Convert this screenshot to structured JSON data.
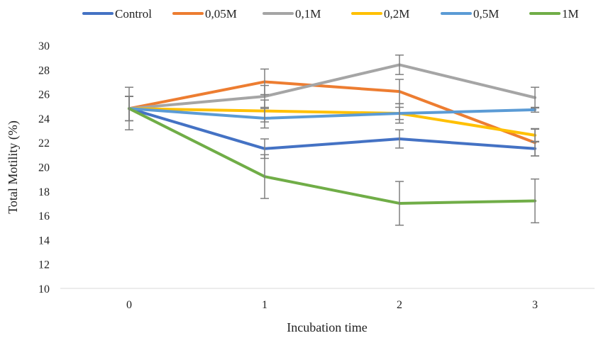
{
  "chart_data": {
    "type": "line",
    "title": "",
    "xlabel": "Incubation time",
    "ylabel": "Total Motility (%)",
    "x": [
      0,
      1,
      2,
      3
    ],
    "x_tick_labels": [
      "0",
      "1",
      "2",
      "3"
    ],
    "ylim": [
      10,
      30
    ],
    "y_ticks": [
      10,
      12,
      14,
      16,
      18,
      20,
      22,
      24,
      26,
      28,
      30
    ],
    "grid": false,
    "legend_position": "top",
    "error_bar_color": "#7f7f7f",
    "series": [
      {
        "name": "Control",
        "color": "#4472c4",
        "values": [
          24.8,
          21.5,
          22.3,
          21.5
        ],
        "errors": [
          1.0,
          0.8,
          0.75,
          0.6
        ]
      },
      {
        "name": "0,05M",
        "color": "#ed7d31",
        "values": [
          24.8,
          27.0,
          26.2,
          22.0
        ],
        "errors": [
          1.0,
          1.05,
          1.0,
          1.1
        ]
      },
      {
        "name": "0,1M",
        "color": "#a5a5a5",
        "values": [
          24.8,
          25.8,
          28.4,
          25.7
        ],
        "errors": [
          1.75,
          0.9,
          0.8,
          0.85
        ]
      },
      {
        "name": "0,2M",
        "color": "#ffc000",
        "values": [
          24.8,
          24.6,
          24.4,
          22.6
        ],
        "errors": [
          1.0,
          0.9,
          0.8,
          0.55
        ]
      },
      {
        "name": "0,5M",
        "color": "#5b9bd5",
        "values": [
          24.8,
          24.0,
          24.4,
          24.7
        ],
        "errors": [
          1.0,
          0.8,
          0.5,
          0.2
        ]
      },
      {
        "name": "1M",
        "color": "#70ad47",
        "values": [
          24.8,
          19.2,
          17.0,
          17.2
        ],
        "errors": [
          1.0,
          1.8,
          1.8,
          1.8
        ]
      }
    ]
  }
}
